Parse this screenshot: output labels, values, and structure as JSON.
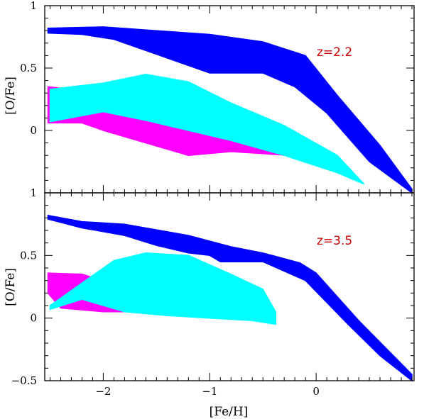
{
  "chart_data": [
    {
      "type": "area",
      "annotation": "z=2.2",
      "annotation_color": "#cc0000",
      "xlabel": "",
      "ylabel": "[O/Fe]",
      "xlim": [
        -2.55,
        0.92
      ],
      "ylim": [
        -0.5,
        1.0
      ],
      "xticks": [
        -2,
        -1,
        0
      ],
      "xtick_labels": [
        "",
        "",
        ""
      ],
      "yticks": [
        0,
        0.5,
        1
      ],
      "ytick_labels": [
        "0",
        "0.5",
        "1"
      ],
      "grid": false,
      "series": [
        {
          "color": "#ff00ff",
          "upper": [
            [
              -2.52,
              0.35
            ],
            [
              -2.3,
              0.33
            ],
            [
              -2.0,
              0.29
            ],
            [
              -1.6,
              0.2
            ],
            [
              -1.2,
              0.08
            ],
            [
              -0.6,
              -0.08
            ],
            [
              -0.25,
              -0.2
            ]
          ],
          "lower": [
            [
              -2.52,
              0.06
            ],
            [
              -2.2,
              0.06
            ],
            [
              -2.0,
              0.0
            ],
            [
              -1.6,
              -0.1
            ],
            [
              -1.2,
              -0.2
            ],
            [
              -0.8,
              -0.17
            ],
            [
              -0.25,
              -0.2
            ]
          ]
        },
        {
          "color": "#00ffff",
          "upper": [
            [
              -2.5,
              0.33
            ],
            [
              -2.0,
              0.38
            ],
            [
              -1.6,
              0.45
            ],
            [
              -1.2,
              0.39
            ],
            [
              -0.8,
              0.22
            ],
            [
              -0.3,
              0.04
            ],
            [
              0.2,
              -0.2
            ],
            [
              0.45,
              -0.43
            ]
          ],
          "lower": [
            [
              -2.5,
              0.07
            ],
            [
              -2.0,
              0.15
            ],
            [
              -1.6,
              0.08
            ],
            [
              -1.2,
              0.0
            ],
            [
              -0.8,
              -0.08
            ],
            [
              -0.3,
              -0.2
            ],
            [
              0.2,
              -0.34
            ],
            [
              0.45,
              -0.43
            ]
          ]
        },
        {
          "color": "#0000ff",
          "upper": [
            [
              -2.52,
              0.82
            ],
            [
              -2.0,
              0.83
            ],
            [
              -1.5,
              0.8
            ],
            [
              -1.0,
              0.77
            ],
            [
              -0.5,
              0.71
            ],
            [
              -0.1,
              0.6
            ],
            [
              0.2,
              0.28
            ],
            [
              0.6,
              -0.12
            ],
            [
              0.9,
              -0.47
            ]
          ],
          "lower": [
            [
              -2.52,
              0.78
            ],
            [
              -2.2,
              0.77
            ],
            [
              -1.9,
              0.73
            ],
            [
              -1.5,
              0.61
            ],
            [
              -1.0,
              0.46
            ],
            [
              -0.5,
              0.46
            ],
            [
              -0.2,
              0.35
            ],
            [
              0.1,
              0.14
            ],
            [
              0.5,
              -0.25
            ],
            [
              0.9,
              -0.5
            ]
          ]
        }
      ]
    },
    {
      "type": "area",
      "annotation": "z=3.5",
      "annotation_color": "#cc0000",
      "xlabel": "[Fe/H]",
      "ylabel": "[O/Fe]",
      "xlim": [
        -2.55,
        0.92
      ],
      "ylim": [
        -0.5,
        1.0
      ],
      "xticks": [
        -2,
        -1,
        0
      ],
      "xtick_labels": [
        "−2",
        "−1",
        "0"
      ],
      "yticks": [
        -0.5,
        0,
        0.5,
        1
      ],
      "ytick_labels": [
        "−0.5",
        "0",
        "0.5",
        "1"
      ],
      "grid": false,
      "series": [
        {
          "color": "#ff00ff",
          "upper": [
            [
              -2.52,
              0.36
            ],
            [
              -2.2,
              0.35
            ],
            [
              -1.8,
              0.25
            ],
            [
              -1.4,
              0.15
            ],
            [
              -1.2,
              0.08
            ]
          ],
          "lower": [
            [
              -2.52,
              0.2
            ],
            [
              -2.4,
              0.08
            ],
            [
              -2.0,
              0.05
            ],
            [
              -1.6,
              0.05
            ],
            [
              -1.2,
              0.05
            ]
          ]
        },
        {
          "color": "#00ffff",
          "upper": [
            [
              -2.5,
              0.1
            ],
            [
              -2.2,
              0.28
            ],
            [
              -1.9,
              0.46
            ],
            [
              -1.6,
              0.52
            ],
            [
              -1.2,
              0.5
            ],
            [
              -0.8,
              0.35
            ],
            [
              -0.5,
              0.23
            ],
            [
              -0.38,
              0.05
            ]
          ],
          "lower": [
            [
              -2.5,
              0.07
            ],
            [
              -2.2,
              0.15
            ],
            [
              -1.8,
              0.05
            ],
            [
              -1.4,
              0.02
            ],
            [
              -1.0,
              0.0
            ],
            [
              -0.6,
              -0.02
            ],
            [
              -0.38,
              -0.05
            ]
          ]
        },
        {
          "color": "#0000ff",
          "upper": [
            [
              -2.52,
              0.82
            ],
            [
              -2.2,
              0.77
            ],
            [
              -1.8,
              0.75
            ],
            [
              -1.2,
              0.66
            ],
            [
              -0.8,
              0.57
            ],
            [
              -0.5,
              0.52
            ],
            [
              -0.15,
              0.44
            ],
            [
              0.0,
              0.36
            ],
            [
              0.4,
              -0.02
            ],
            [
              0.9,
              -0.45
            ]
          ],
          "lower": [
            [
              -2.52,
              0.79
            ],
            [
              -2.2,
              0.72
            ],
            [
              -1.8,
              0.66
            ],
            [
              -1.5,
              0.58
            ],
            [
              -1.2,
              0.52
            ],
            [
              -1.0,
              0.5
            ],
            [
              -0.9,
              0.45
            ],
            [
              -0.5,
              0.45
            ],
            [
              -0.1,
              0.3
            ],
            [
              0.3,
              -0.05
            ],
            [
              0.6,
              -0.3
            ],
            [
              0.9,
              -0.5
            ]
          ]
        }
      ]
    }
  ]
}
